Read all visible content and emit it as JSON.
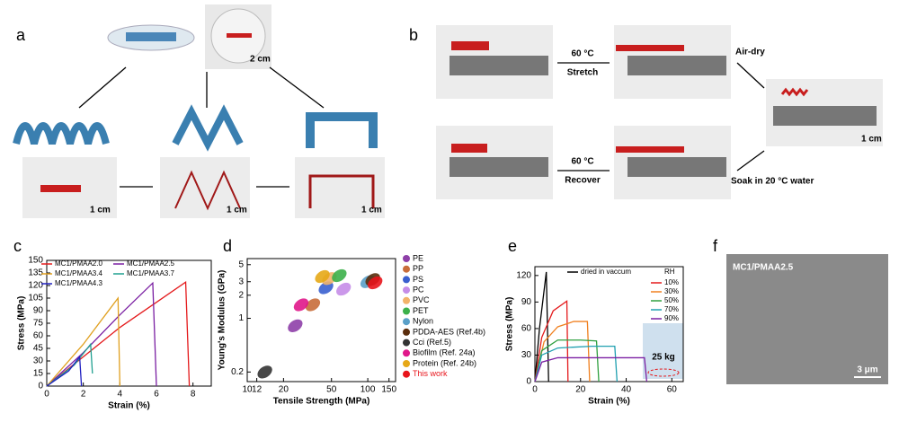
{
  "panels": {
    "a": {
      "label": "a",
      "scale_bars": [
        "2 cm",
        "1 cm",
        "1 cm",
        "1 cm"
      ]
    },
    "b": {
      "label": "b",
      "captions": [
        "60 °C",
        "Stretch",
        "Air-dry",
        "1 cm",
        "Soak in 20 °C water",
        "60 °C",
        "Recover"
      ]
    },
    "c": {
      "label": "c"
    },
    "d": {
      "label": "d"
    },
    "e": {
      "label": "e",
      "annotation": "25 kg"
    },
    "f": {
      "label": "f",
      "sample": "MC1/PMAA2.5",
      "scale_bar": "3 μm"
    }
  },
  "chart_data": [
    {
      "type": "line",
      "xlabel": "Strain (%)",
      "ylabel": "Stress (MPa)",
      "xlim": [
        0,
        9
      ],
      "xticks": [
        0,
        2,
        4,
        6,
        8
      ],
      "ylim": [
        0,
        150
      ],
      "yticks": [
        0,
        15,
        30,
        45,
        60,
        75,
        90,
        105,
        120,
        135,
        150
      ],
      "series": [
        {
          "name": "MC1/PMAA2.0",
          "color": "#e41a1c",
          "x": [
            0,
            2,
            4,
            6,
            7.6,
            7.8
          ],
          "values": [
            0,
            35,
            70,
            100,
            124,
            0
          ]
        },
        {
          "name": "MC1/PMAA2.5",
          "color": "#7a1fa2",
          "x": [
            0,
            2,
            4,
            5.8,
            6
          ],
          "values": [
            0,
            40,
            85,
            123,
            0
          ]
        },
        {
          "name": "MC1/PMAA3.4",
          "color": "#e0a020",
          "x": [
            0,
            2,
            3.9,
            4
          ],
          "values": [
            0,
            50,
            105,
            0
          ]
        },
        {
          "name": "MC1/PMAA3.7",
          "color": "#20a090",
          "x": [
            0,
            1.5,
            2.4,
            2.5
          ],
          "values": [
            0,
            25,
            50,
            15
          ]
        },
        {
          "name": "MC1/PMAA4.3",
          "color": "#2020c0",
          "x": [
            0,
            1.2,
            1.8,
            1.9
          ],
          "values": [
            0,
            18,
            35,
            0
          ]
        }
      ]
    },
    {
      "type": "scatter",
      "xlabel": "Tensile Strength (MPa)",
      "ylabel": "Young's Modulus (GPa)",
      "xlog": true,
      "ylog": true,
      "xlim": [
        10,
        170
      ],
      "xticks": [
        10,
        12,
        20,
        50,
        100,
        150
      ],
      "ylim": [
        0.15,
        6
      ],
      "yticks": [
        0.2,
        1,
        2,
        3,
        5
      ],
      "series": [
        {
          "name": "PE",
          "color": "#8e3fa8",
          "x": [
            25
          ],
          "values": [
            0.8
          ]
        },
        {
          "name": "PP",
          "color": "#c86d3a",
          "x": [
            35
          ],
          "values": [
            1.5
          ]
        },
        {
          "name": "PS",
          "color": "#3a5fcf",
          "x": [
            45
          ],
          "values": [
            2.5
          ]
        },
        {
          "name": "PC",
          "color": "#c58de8",
          "x": [
            63
          ],
          "values": [
            2.4
          ]
        },
        {
          "name": "PVC",
          "color": "#f2b36a",
          "x": [
            48
          ],
          "values": [
            3.3
          ]
        },
        {
          "name": "PET",
          "color": "#3cb04a",
          "x": [
            58
          ],
          "values": [
            3.6
          ]
        },
        {
          "name": "Nylon",
          "color": "#5aa0c8",
          "x": [
            100
          ],
          "values": [
            3.0
          ]
        },
        {
          "name": "PDDA-AES (Ref.4b)",
          "color": "#5a2d0c",
          "x": [
            110
          ],
          "values": [
            3.2
          ]
        },
        {
          "name": "Cci (Ref.5)",
          "color": "#333333",
          "x": [
            14
          ],
          "values": [
            0.2
          ]
        },
        {
          "name": "Biofilm (Ref. 24a)",
          "color": "#e0178a",
          "x": [
            28
          ],
          "values": [
            1.5
          ]
        },
        {
          "name": "Protein (Ref. 24b)",
          "color": "#e6a817",
          "x": [
            42
          ],
          "values": [
            3.5
          ]
        },
        {
          "name": "This work",
          "color": "#e8141b",
          "x": [
            115
          ],
          "values": [
            2.9
          ]
        }
      ]
    },
    {
      "type": "line",
      "xlabel": "Strain (%)",
      "ylabel": "Stress (MPa)",
      "legend_title": "RH",
      "xlim": [
        0,
        65
      ],
      "xticks": [
        0,
        20,
        40,
        60
      ],
      "ylim": [
        0,
        130
      ],
      "yticks": [
        0,
        30,
        60,
        90,
        120
      ],
      "series": [
        {
          "name": "dried in vaccum",
          "color": "#000000",
          "x": [
            0,
            2,
            5,
            6
          ],
          "values": [
            0,
            60,
            124,
            0
          ]
        },
        {
          "name": "10%",
          "color": "#e41a1c",
          "x": [
            0,
            3,
            8,
            14,
            14.5
          ],
          "values": [
            0,
            50,
            80,
            91,
            0
          ]
        },
        {
          "name": "30%",
          "color": "#f08020",
          "x": [
            0,
            4,
            10,
            17,
            23,
            24
          ],
          "values": [
            0,
            45,
            62,
            68,
            68,
            0
          ]
        },
        {
          "name": "50%",
          "color": "#30a040",
          "x": [
            0,
            3,
            10,
            20,
            27,
            28
          ],
          "values": [
            0,
            35,
            47,
            47,
            46,
            0
          ]
        },
        {
          "name": "70%",
          "color": "#20a0b0",
          "x": [
            0,
            3,
            10,
            25,
            35,
            36
          ],
          "values": [
            0,
            30,
            38,
            40,
            40,
            0
          ]
        },
        {
          "name": "90%",
          "color": "#7a1fa2",
          "x": [
            0,
            3,
            10,
            30,
            48,
            49
          ],
          "values": [
            0,
            22,
            27,
            27,
            27,
            0
          ]
        }
      ]
    }
  ]
}
